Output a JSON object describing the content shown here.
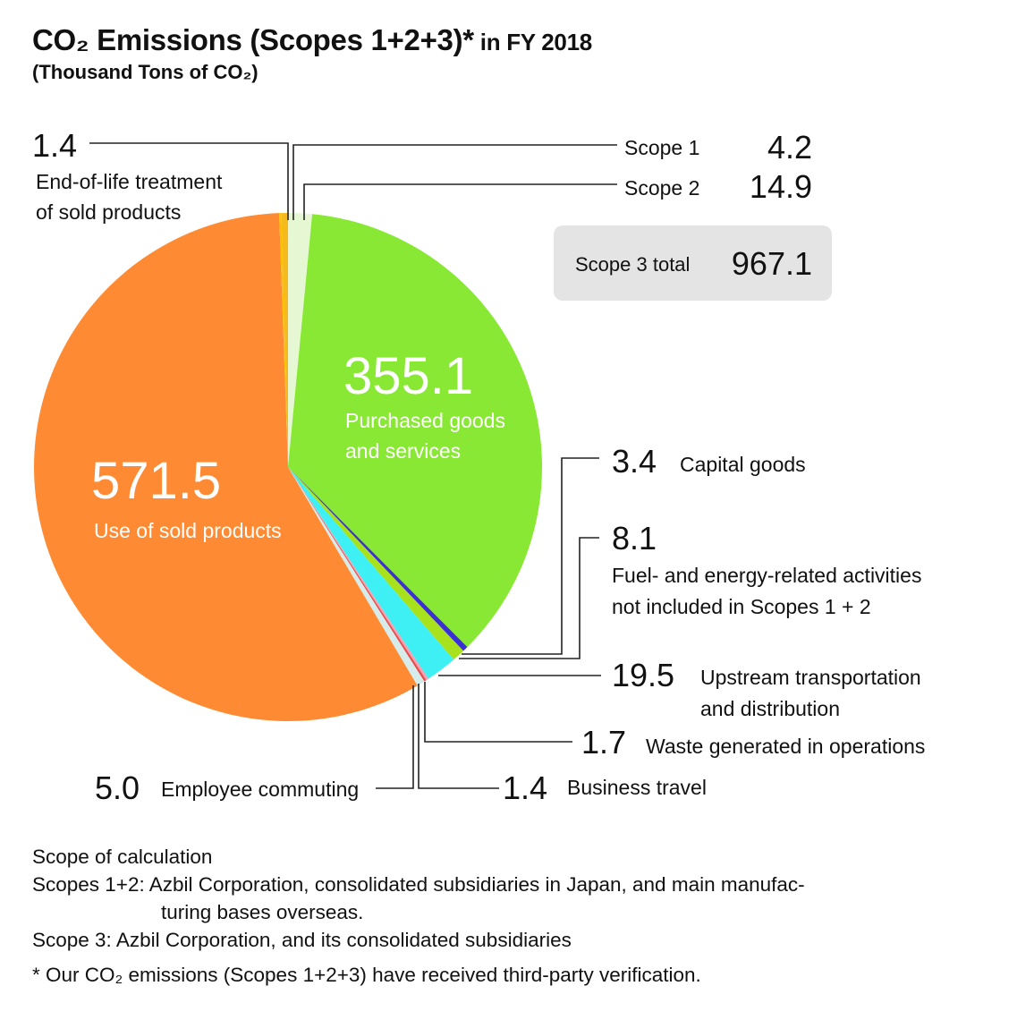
{
  "title": {
    "main": "CO₂ Emissions (Scopes 1+2+3)*",
    "suffix": " in FY 2018",
    "subtitle": "(Thousand Tons of CO₂)"
  },
  "chart_data": {
    "type": "pie",
    "unit": "Thousand Tons of CO₂",
    "start_angle_deg": -1.5,
    "direction": "clockwise",
    "slices": [
      {
        "id": "scope1",
        "label": "Scope 1",
        "value": 4.2,
        "color": "#f5ba1c"
      },
      {
        "id": "scope2",
        "label": "Scope 2",
        "value": 14.9,
        "color": "#e6f7d3"
      },
      {
        "id": "purchased",
        "label": "Purchased goods and services",
        "value": 355.1,
        "color": "#88e834"
      },
      {
        "id": "capital",
        "label": "Capital goods",
        "value": 3.4,
        "color": "#3b2fd6"
      },
      {
        "id": "fuel",
        "label": "Fuel- and energy-related activities not included in Scopes 1 + 2",
        "value": 8.1,
        "color": "#a8e21c"
      },
      {
        "id": "upstream",
        "label": "Upstream transportation and distribution",
        "value": 19.5,
        "color": "#3ef0f3"
      },
      {
        "id": "waste",
        "label": "Waste generated in operations",
        "value": 1.7,
        "color": "#f7a1b0"
      },
      {
        "id": "travel",
        "label": "Business travel",
        "value": 1.4,
        "color": "#e84b4b"
      },
      {
        "id": "commute",
        "label": "Employee commuting",
        "value": 5.0,
        "color": "#d6ecea"
      },
      {
        "id": "use",
        "label": "Use of sold products",
        "value": 571.5,
        "color": "#fe8b33"
      },
      {
        "id": "eol",
        "label": "End-of-life treatment of sold products",
        "value": 1.4,
        "color": "#ffc000"
      }
    ]
  },
  "labels": {
    "scope1": {
      "value": "4.2",
      "desc": "Scope 1"
    },
    "scope2": {
      "value": "14.9",
      "desc": "Scope 2"
    },
    "scope3_total": {
      "desc": "Scope 3 total",
      "value": "967.1"
    },
    "eol": {
      "value": "1.4",
      "desc1": "End-of-life treatment",
      "desc2": "of sold products"
    },
    "purchased": {
      "value": "355.1",
      "desc1": "Purchased goods",
      "desc2": "and services"
    },
    "use": {
      "value": "571.5",
      "desc": "Use of sold products"
    },
    "capital": {
      "value": "3.4",
      "desc": "Capital goods"
    },
    "fuel": {
      "value": "8.1",
      "desc1": "Fuel- and energy-related activities",
      "desc2": "not included in Scopes 1 + 2"
    },
    "upstream": {
      "value": "19.5",
      "desc1": "Upstream transportation",
      "desc2": "and distribution"
    },
    "waste": {
      "value": "1.7",
      "desc": "Waste generated in operations"
    },
    "travel": {
      "value": "1.4",
      "desc": "Business travel"
    },
    "commute": {
      "value": "5.0",
      "desc": "Employee commuting"
    }
  },
  "notes": {
    "heading": "Scope of calculation",
    "scopes12_a": "Scopes 1+2: Azbil Corporation, consolidated subsidiaries in Japan, and main manufac-",
    "scopes12_b": "turing bases overseas.",
    "scope3": "Scope 3: Azbil Corporation, and its consolidated subsidiaries",
    "footnote": "* Our CO₂ emissions (Scopes 1+2+3) have received third-party verification."
  }
}
